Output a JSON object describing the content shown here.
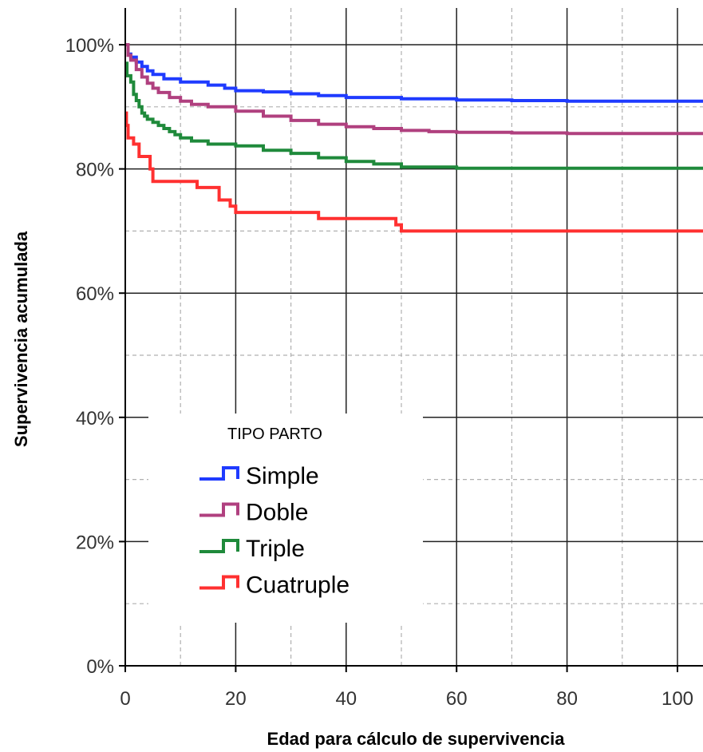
{
  "chart_data": {
    "type": "line",
    "step": true,
    "xlabel": "Edad para cálculo de supervivencia",
    "ylabel": "Supervivencia acumulada",
    "xlim": [
      0,
      105
    ],
    "ylim": [
      0,
      100
    ],
    "x_ticks": [
      "0",
      "20",
      "40",
      "60",
      "80",
      "100"
    ],
    "x_tick_values": [
      0,
      20,
      40,
      60,
      80,
      100
    ],
    "y_ticks": [
      "0%",
      "20%",
      "40%",
      "60%",
      "80%",
      "100%"
    ],
    "y_tick_values": [
      0,
      20,
      40,
      60,
      80,
      100
    ],
    "grid": "major solid, minor dashed",
    "legend": {
      "title": "TIPO PARTO",
      "placement": "lower-left"
    },
    "series": [
      {
        "name": "Simple",
        "color": "#1f3bff",
        "x": [
          0,
          0.5,
          1,
          2,
          3,
          4,
          5,
          7,
          10,
          15,
          18,
          20,
          25,
          30,
          35,
          40,
          50,
          60,
          70,
          80,
          105
        ],
        "y": [
          100,
          98.5,
          98,
          97.2,
          96.5,
          95.8,
          95.2,
          94.5,
          94,
          93.5,
          93,
          92.6,
          92.4,
          92.1,
          91.8,
          91.5,
          91.3,
          91.1,
          91,
          90.9,
          90.9
        ]
      },
      {
        "name": "Doble",
        "color": "#b0407f",
        "x": [
          0,
          0.5,
          1,
          2,
          3,
          4,
          5,
          6,
          8,
          10,
          12,
          15,
          20,
          25,
          30,
          35,
          40,
          45,
          50,
          55,
          60,
          70,
          80,
          105
        ],
        "y": [
          100,
          98.3,
          97.5,
          96,
          94.8,
          93.8,
          93,
          92.3,
          91.5,
          90.9,
          90.4,
          90,
          89.3,
          88.5,
          87.8,
          87.2,
          86.8,
          86.5,
          86.2,
          86,
          85.9,
          85.8,
          85.7,
          85.7
        ]
      },
      {
        "name": "Triple",
        "color": "#1f8a3b",
        "x": [
          0,
          0.3,
          1,
          1.5,
          2,
          2.5,
          3,
          3.5,
          4,
          5,
          6,
          7,
          8,
          9,
          10,
          12,
          15,
          20,
          25,
          30,
          35,
          40,
          45,
          50,
          60,
          80,
          105
        ],
        "y": [
          97,
          95,
          94,
          92,
          91,
          90,
          89,
          88.5,
          88,
          87.5,
          87,
          86.5,
          86,
          85.5,
          85,
          84.5,
          84,
          83.7,
          83,
          82.5,
          81.8,
          81.2,
          80.8,
          80.3,
          80.1,
          80.1,
          80.1
        ]
      },
      {
        "name": "Cuatruple",
        "color": "#ff3030",
        "x": [
          0,
          0.2,
          0.5,
          1.5,
          2.5,
          4.5,
          5,
          13,
          16,
          17,
          19,
          20,
          22,
          35,
          36,
          49,
          50,
          105
        ],
        "y": [
          89,
          87,
          85,
          84,
          82,
          80,
          78,
          77,
          77,
          75,
          74,
          73,
          73,
          72,
          72,
          71,
          70,
          70
        ]
      }
    ]
  }
}
